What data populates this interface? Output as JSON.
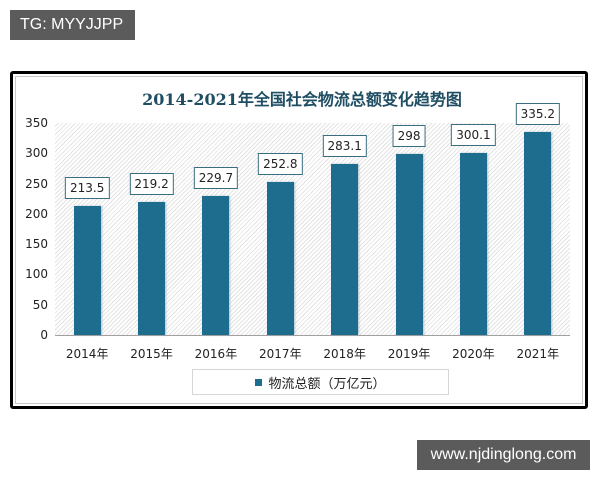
{
  "watermarks": {
    "top_left": "TG: MYYJJPP",
    "bottom_right": "www.njdinglong.com"
  },
  "colors": {
    "bar": "#1e6c8e",
    "title": "#1f4e63",
    "watermark_bg": "#5b5b5b"
  },
  "chart_data": {
    "type": "bar",
    "title": "2014-2021年全国社会物流总额变化趋势图",
    "categories": [
      "2014年",
      "2015年",
      "2016年",
      "2017年",
      "2018年",
      "2019年",
      "2020年",
      "2021年"
    ],
    "series": [
      {
        "name": "物流总额（万亿元）",
        "values": [
          213.5,
          219.2,
          229.7,
          252.8,
          283.1,
          298,
          300.1,
          335.2
        ]
      }
    ],
    "value_labels": [
      "213.5",
      "219.2",
      "229.7",
      "252.8",
      "283.1",
      "298",
      "300.1",
      "335.2"
    ],
    "xlabel": "",
    "ylabel": "",
    "ylim": [
      0,
      350
    ],
    "yticks": [
      "0",
      "50",
      "100",
      "150",
      "200",
      "250",
      "300",
      "350"
    ],
    "grid": false,
    "legend_position": "bottom"
  }
}
